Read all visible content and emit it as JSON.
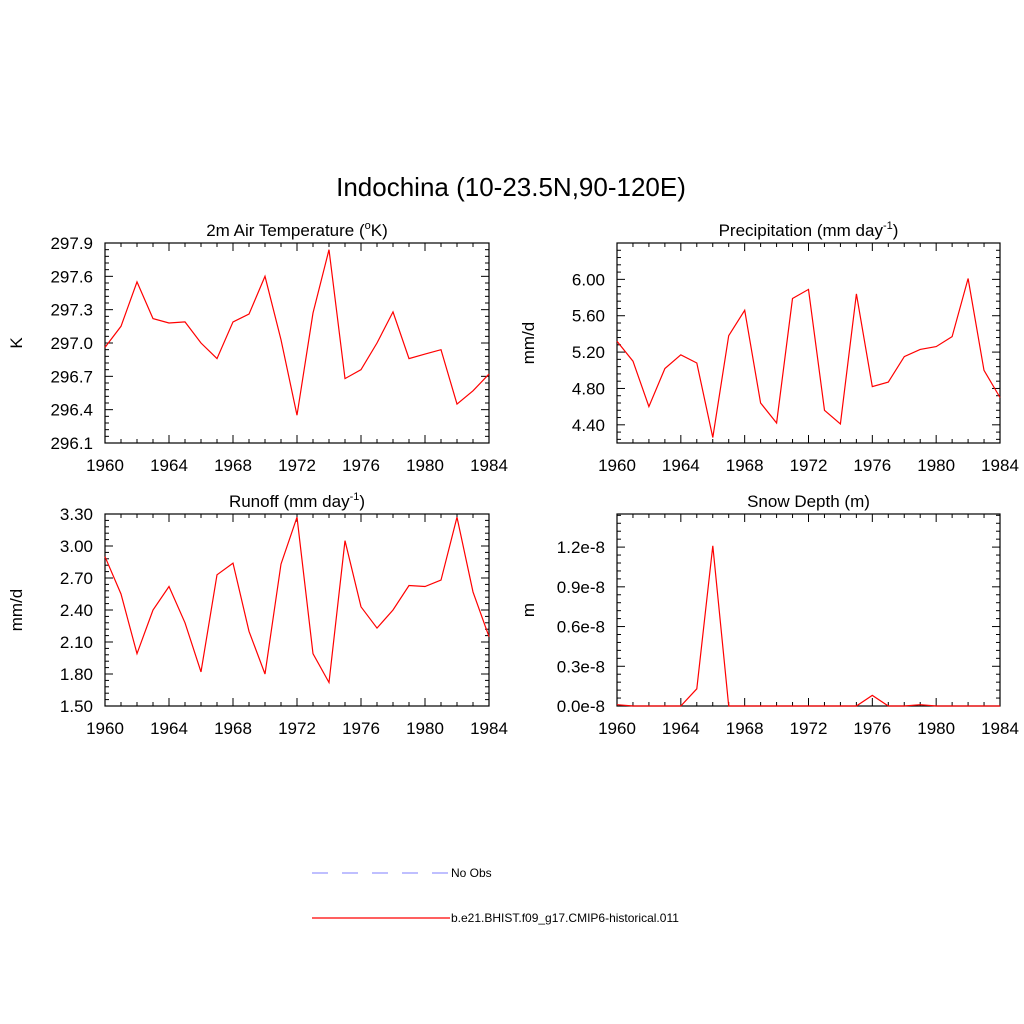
{
  "figure": {
    "title": "Indochina (10-23.5N,90-120E)"
  },
  "legend": {
    "entries": [
      {
        "label": "No Obs",
        "color": "#9999ff",
        "dash": true
      },
      {
        "label": "b.e21.BHIST.f09_g17.CMIP6-historical.011",
        "color": "#ff0000",
        "dash": false
      }
    ]
  },
  "colors": {
    "series": "#ff0000",
    "axis": "#000000"
  },
  "chart_data": [
    {
      "type": "line",
      "title": "2m Air Temperature (",
      "title_sup": "o",
      "title_after": "K)",
      "ylabel": "K",
      "xlim": [
        1960,
        1984
      ],
      "ylim": [
        296.1,
        297.9
      ],
      "x_ticks": [
        "1960",
        "1964",
        "1968",
        "1972",
        "1976",
        "1980",
        "1984"
      ],
      "y_ticks": [
        "296.1",
        "296.4",
        "296.7",
        "297.0",
        "297.3",
        "297.6",
        "297.9"
      ],
      "x": [
        1960,
        1961,
        1962,
        1963,
        1964,
        1965,
        1966,
        1967,
        1968,
        1969,
        1970,
        1971,
        1972,
        1973,
        1974,
        1975,
        1976,
        1977,
        1978,
        1979,
        1980,
        1981,
        1982,
        1983,
        1984
      ],
      "series": [
        {
          "values": [
            296.96,
            297.15,
            297.55,
            297.22,
            297.18,
            297.19,
            297.0,
            296.86,
            297.19,
            297.26,
            297.6,
            297.03,
            296.35,
            297.27,
            297.84,
            296.68,
            296.76,
            297.0,
            297.28,
            296.86,
            296.9,
            296.94,
            296.45,
            296.57,
            296.72
          ]
        }
      ]
    },
    {
      "type": "line",
      "title": "Precipitation (mm day",
      "title_sup": "-1",
      "title_after": ")",
      "ylabel": "mm/d",
      "xlim": [
        1960,
        1984
      ],
      "ylim": [
        4.2,
        6.4
      ],
      "x_ticks": [
        "1960",
        "1964",
        "1968",
        "1972",
        "1976",
        "1980",
        "1984"
      ],
      "y_ticks": [
        "4.40",
        "4.80",
        "5.20",
        "5.60",
        "6.00"
      ],
      "x": [
        1960,
        1961,
        1962,
        1963,
        1964,
        1965,
        1966,
        1967,
        1968,
        1969,
        1970,
        1971,
        1972,
        1973,
        1974,
        1975,
        1976,
        1977,
        1978,
        1979,
        1980,
        1981,
        1982,
        1983,
        1984
      ],
      "series": [
        {
          "values": [
            5.32,
            5.1,
            4.6,
            5.02,
            5.17,
            5.08,
            4.26,
            5.38,
            5.66,
            4.64,
            4.42,
            5.79,
            5.89,
            4.56,
            4.41,
            5.84,
            4.82,
            4.87,
            5.15,
            5.23,
            5.26,
            5.37,
            6.01,
            5.0,
            4.7
          ]
        }
      ]
    },
    {
      "type": "line",
      "title": "Runoff (mm day",
      "title_sup": "-1",
      "title_after": ")",
      "ylabel": "mm/d",
      "xlim": [
        1960,
        1984
      ],
      "ylim": [
        1.5,
        3.3
      ],
      "x_ticks": [
        "1960",
        "1964",
        "1968",
        "1972",
        "1976",
        "1980",
        "1984"
      ],
      "y_ticks": [
        "1.50",
        "1.80",
        "2.10",
        "2.40",
        "2.70",
        "3.00",
        "3.30"
      ],
      "x": [
        1960,
        1961,
        1962,
        1963,
        1964,
        1965,
        1966,
        1967,
        1968,
        1969,
        1970,
        1971,
        1972,
        1973,
        1974,
        1975,
        1976,
        1977,
        1978,
        1979,
        1980,
        1981,
        1982,
        1983,
        1984
      ],
      "series": [
        {
          "values": [
            2.9,
            2.55,
            1.99,
            2.4,
            2.62,
            2.28,
            1.82,
            2.73,
            2.84,
            2.2,
            1.8,
            2.83,
            3.27,
            1.99,
            1.72,
            3.05,
            2.43,
            2.23,
            2.4,
            2.63,
            2.62,
            2.68,
            3.27,
            2.57,
            2.15
          ]
        }
      ]
    },
    {
      "type": "line",
      "title": "Snow Depth (m)",
      "title_sup": "",
      "title_after": "",
      "ylabel": "m",
      "xlim": [
        1960,
        1984
      ],
      "ylim": [
        0.0,
        1.45e-08
      ],
      "x_ticks": [
        "1960",
        "1964",
        "1968",
        "1972",
        "1976",
        "1980",
        "1984"
      ],
      "y_ticks": [
        "0.0e-8",
        "0.3e-8",
        "0.6e-8",
        "0.9e-8",
        "1.2e-8"
      ],
      "x": [
        1960,
        1961,
        1962,
        1963,
        1964,
        1965,
        1966,
        1967,
        1968,
        1969,
        1970,
        1971,
        1972,
        1973,
        1974,
        1975,
        1976,
        1977,
        1978,
        1979,
        1980,
        1981,
        1982,
        1983,
        1984
      ],
      "series": [
        {
          "values": [
            1e-10,
            0,
            0,
            0,
            0,
            1.3e-09,
            1.21e-08,
            0,
            0,
            0,
            0,
            0,
            0,
            0,
            0,
            0,
            8e-10,
            0,
            0,
            1e-10,
            0,
            0,
            0,
            0,
            0
          ]
        }
      ]
    }
  ]
}
